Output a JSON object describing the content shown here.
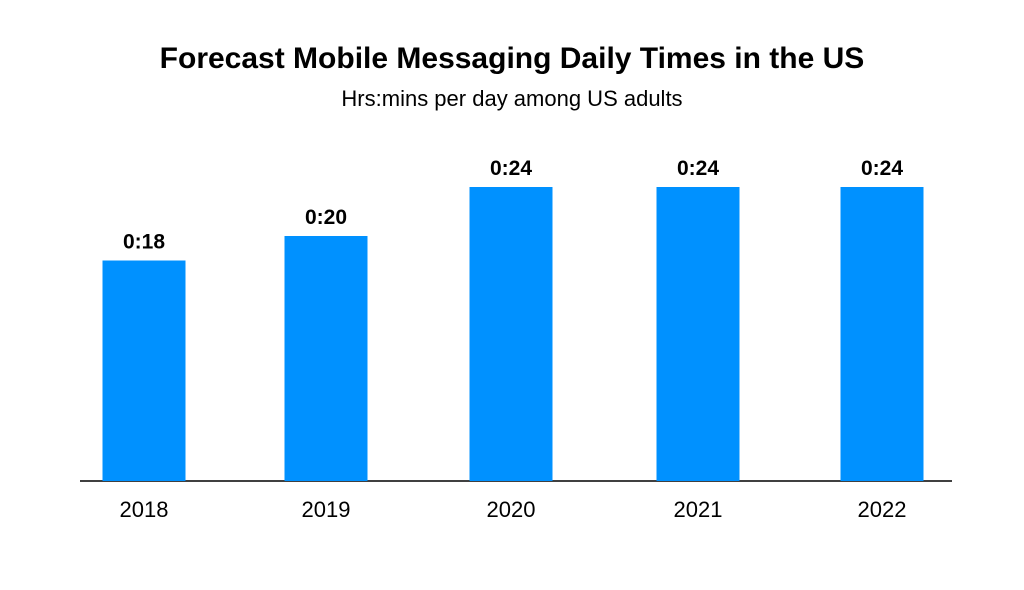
{
  "chart_data": {
    "type": "bar",
    "title": "Forecast Mobile Messaging Daily Times in the US",
    "subtitle": "Hrs:mins per day among US adults",
    "categories": [
      "2018",
      "2019",
      "2020",
      "2021",
      "2022"
    ],
    "values": [
      18,
      20,
      24,
      24,
      24
    ],
    "value_unit": "minutes",
    "data_labels": [
      "0:18",
      "0:20",
      "0:24",
      "0:24",
      "0:24"
    ],
    "xlabel": "",
    "ylabel": "",
    "ylim": [
      0,
      24
    ],
    "grid": false,
    "bar_color": "#0091FF"
  }
}
